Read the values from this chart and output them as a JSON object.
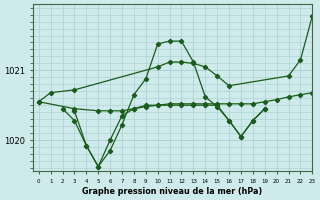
{
  "bg_color": "#ceeaea",
  "grid_color": "#aacfcf",
  "line_color": "#1a5c1a",
  "title": "Graphe pression niveau de la mer (hPa)",
  "ylabel_ticks": [
    1020,
    1021
  ],
  "xlim": [
    -0.5,
    23
  ],
  "ylim": [
    1019.55,
    1021.95
  ],
  "series": [
    {
      "x": [
        0,
        1,
        3,
        10,
        11,
        12,
        13,
        14,
        15,
        16,
        21,
        22,
        23
      ],
      "y": [
        1020.55,
        1020.68,
        1020.72,
        1021.05,
        1021.12,
        1021.12,
        1021.1,
        1021.05,
        1020.92,
        1020.78,
        1020.92,
        1021.15,
        1021.78
      ]
    },
    {
      "x": [
        0,
        3,
        5,
        6,
        7,
        8,
        9,
        10,
        11,
        12,
        13,
        14,
        15,
        16,
        17,
        18,
        19,
        20,
        21,
        22,
        23
      ],
      "y": [
        1020.55,
        1020.45,
        1020.42,
        1020.42,
        1020.42,
        1020.45,
        1020.48,
        1020.5,
        1020.52,
        1020.52,
        1020.52,
        1020.52,
        1020.52,
        1020.52,
        1020.52,
        1020.52,
        1020.55,
        1020.58,
        1020.62,
        1020.65,
        1020.68
      ]
    },
    {
      "x": [
        3,
        4,
        5,
        6,
        7,
        8,
        9,
        10,
        11,
        12,
        13,
        14,
        15,
        16,
        17,
        18,
        19
      ],
      "y": [
        1020.42,
        1019.92,
        1019.62,
        1019.85,
        1020.22,
        1020.65,
        1020.88,
        1021.38,
        1021.42,
        1021.42,
        1021.12,
        1020.62,
        1020.48,
        1020.28,
        1020.05,
        1020.28,
        1020.45
      ]
    },
    {
      "x": [
        2,
        3,
        4,
        5,
        6,
        7,
        8,
        9,
        10,
        11,
        12,
        13,
        14,
        15,
        16,
        17,
        18,
        19
      ],
      "y": [
        1020.45,
        1020.28,
        1019.92,
        1019.62,
        1020.0,
        1020.35,
        1020.45,
        1020.5,
        1020.5,
        1020.5,
        1020.5,
        1020.5,
        1020.5,
        1020.5,
        1020.28,
        1020.05,
        1020.28,
        1020.45
      ]
    }
  ]
}
